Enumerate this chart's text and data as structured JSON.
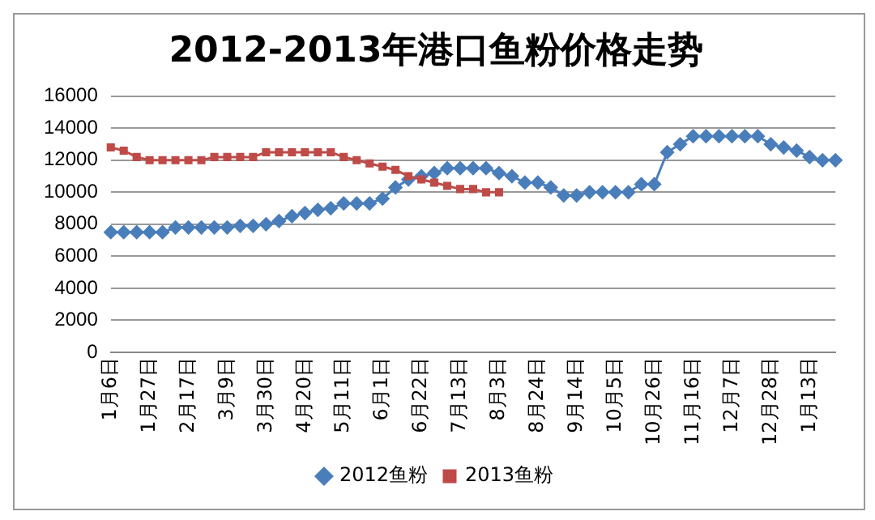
{
  "chart_data": {
    "type": "line",
    "title": "2012-2013年港口鱼粉价格走势",
    "categories": [
      "1月6日",
      null,
      null,
      "1月27日",
      null,
      null,
      "2月17日",
      null,
      null,
      "3月9日",
      null,
      null,
      "3月30日",
      null,
      null,
      "4月20日",
      null,
      null,
      "5月11日",
      null,
      null,
      "6月1日",
      null,
      null,
      "6月22日",
      null,
      null,
      "7月13日",
      null,
      null,
      "8月3日",
      null,
      null,
      "8月24日",
      null,
      null,
      "9月14日",
      null,
      null,
      "10月5日",
      null,
      null,
      "10月26日",
      null,
      null,
      "11月16日",
      null,
      null,
      "12月7日",
      null,
      null,
      "12月28日",
      null,
      null,
      "1月13日",
      null,
      null
    ],
    "series": [
      {
        "name": "2012鱼粉",
        "color": "#4a7ebb",
        "marker": "diamond",
        "values": [
          7500,
          7500,
          7500,
          7500,
          7500,
          7800,
          7800,
          7800,
          7800,
          7800,
          7900,
          7900,
          8000,
          8200,
          8500,
          8700,
          8900,
          9000,
          9300,
          9300,
          9300,
          9600,
          10300,
          10800,
          11000,
          11200,
          11500,
          11500,
          11500,
          11500,
          11200,
          11000,
          10600,
          10600,
          10300,
          9800,
          9800,
          10000,
          10000,
          10000,
          10000,
          10500,
          10500,
          12500,
          13000,
          13500,
          13500,
          13500,
          13500,
          13500,
          13500,
          13000,
          12800,
          12600,
          12200,
          12000,
          12000
        ]
      },
      {
        "name": "2013鱼粉",
        "color": "#be4b48",
        "marker": "square",
        "values": [
          12800,
          12600,
          12200,
          12000,
          12000,
          12000,
          12000,
          12000,
          12200,
          12200,
          12200,
          12200,
          12500,
          12500,
          12500,
          12500,
          12500,
          12500,
          12200,
          12000,
          11800,
          11600,
          11400,
          11000,
          10800,
          10600,
          10400,
          10200,
          10200,
          10000,
          10000,
          null,
          null,
          null,
          null,
          null,
          null,
          null,
          null,
          null,
          null,
          null,
          null,
          null,
          null,
          null,
          null,
          null,
          null,
          null,
          null,
          null,
          null,
          null,
          null,
          null,
          null
        ]
      }
    ],
    "ylim": [
      0,
      16000
    ],
    "yticks": [
      0,
      2000,
      4000,
      6000,
      8000,
      10000,
      12000,
      14000,
      16000
    ],
    "grid": "y",
    "legend": "bottom"
  }
}
